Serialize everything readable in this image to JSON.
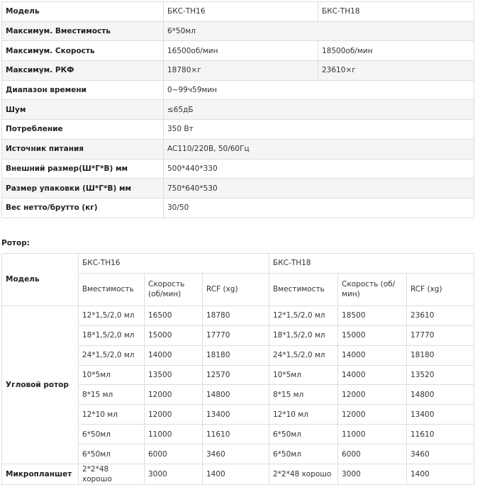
{
  "spec_table": {
    "rows": [
      [
        "Модель",
        "БКС-ТН16",
        "БКС-ТН18"
      ],
      [
        "Максимум. Вместимость",
        "6*50мл"
      ],
      [
        "Максимум. Скорость",
        "16500об/мин",
        "18500об/мин"
      ],
      [
        "Максимум. РКФ",
        "18780×г",
        "23610×г"
      ],
      [
        "Диапазон времени",
        "0~99ч59мин"
      ],
      [
        "Шум",
        "≤65дБ"
      ],
      [
        "Потребление",
        "350 Вт"
      ],
      [
        "Источник питания",
        "AC110/220В, 50/60Гц"
      ],
      [
        "Внешний размер(Ш*Г*В) мм",
        "500*440*330"
      ],
      [
        "Размер упаковки (Ш*Г*В) мм",
        "750*640*530"
      ],
      [
        "Вес нетто/брутто (кг)",
        "30/50"
      ]
    ]
  },
  "rotor_heading": "Ротор:",
  "rotor_table": {
    "model_label": "Модель",
    "models": [
      "БКС-ТН16",
      "БКС-ТН18"
    ],
    "columns": [
      "Вместимость",
      "Скорость (об/мин)",
      "RCF (xg)"
    ],
    "groups": [
      {
        "label": "Угловой ротор",
        "rows": [
          [
            "12*1,5/2,0 мл",
            "16500",
            "18780",
            "12*1,5/2,0 мл",
            "18500",
            "23610"
          ],
          [
            "18*1,5/2,0 мл",
            "15000",
            "17770",
            "18*1,5/2,0 мл",
            "15000",
            "17770"
          ],
          [
            "24*1,5/2,0 мл",
            "14000",
            "18180",
            "24*1,5/2,0 мл",
            "14000",
            "18180"
          ],
          [
            "10*5мл",
            "13500",
            "12570",
            "10*5мл",
            "14000",
            "13520"
          ],
          [
            "8*15 мл",
            "12000",
            "14800",
            "8*15 мл",
            "12000",
            "14800"
          ],
          [
            "12*10 мл",
            "12000",
            "13400",
            "12*10 мл",
            "12000",
            "13400"
          ],
          [
            "6*50мл",
            "11000",
            "11610",
            "6*50мл",
            "11000",
            "11610"
          ],
          [
            "6*50мл",
            "6000",
            "3460",
            "6*50мл",
            "6000",
            "3460"
          ]
        ]
      },
      {
        "label": "Микропланшет",
        "rows": [
          [
            "2*2*48 хорошо",
            "3000",
            "1400",
            "2*2*48 хорошо",
            "3000",
            "1400"
          ]
        ]
      }
    ]
  }
}
